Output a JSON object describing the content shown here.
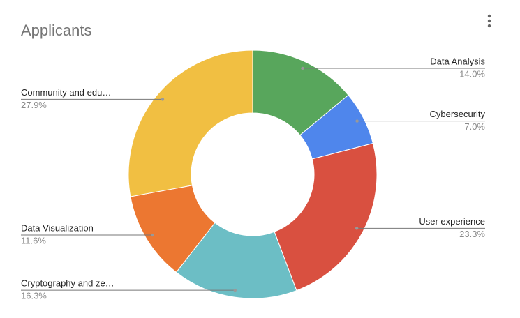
{
  "chart_data": {
    "type": "donut",
    "title": "Applicants",
    "categories": [
      "Data Analysis",
      "Cybersecurity",
      "User experience",
      "Cryptography and ze…",
      "Data Visualization",
      "Community and edu…"
    ],
    "values": [
      14.0,
      7.0,
      23.3,
      16.3,
      11.6,
      27.9
    ],
    "value_labels": [
      "14.0%",
      "7.0%",
      "23.3%",
      "16.3%",
      "11.6%",
      "27.9%"
    ],
    "colors": [
      "#58a65c",
      "#4f86ec",
      "#d95040",
      "#6cbec5",
      "#ec7731",
      "#f1bf42"
    ]
  }
}
